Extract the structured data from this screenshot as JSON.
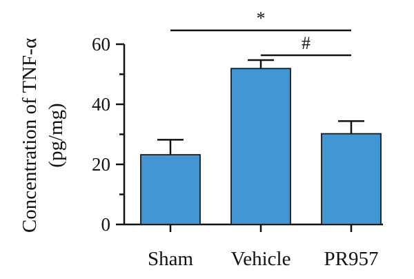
{
  "chart_data": {
    "type": "bar",
    "categories": [
      "Sham",
      "Vehicle",
      "PR957"
    ],
    "values": [
      23.2,
      51.9,
      30.2
    ],
    "errors": [
      5.0,
      2.8,
      4.2
    ],
    "ylabel_line1": "Concentration of TNF-α",
    "ylabel_line2": "(pg/mg)",
    "ylim": [
      0,
      60
    ],
    "yticks": [
      0,
      20,
      40,
      60
    ],
    "bar_color": "#4296d3",
    "grid": false,
    "significance": [
      {
        "from": "Sham",
        "to": "PR957",
        "label": "*",
        "level": 1
      },
      {
        "from": "Vehicle",
        "to": "PR957",
        "label": "#",
        "level": 0
      }
    ]
  }
}
